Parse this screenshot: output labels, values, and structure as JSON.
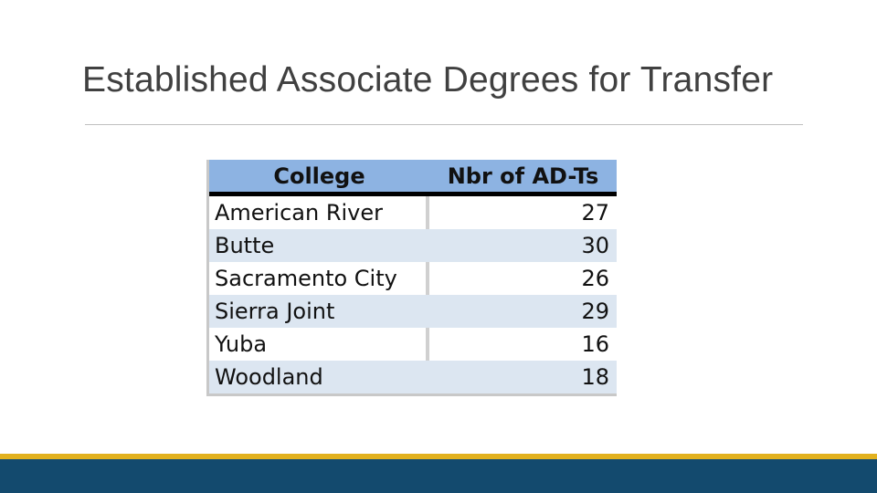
{
  "header": {
    "title": "Established Associate Degrees for Transfer"
  },
  "table": {
    "columns": [
      "College",
      "Nbr of AD-Ts"
    ],
    "rows": [
      [
        "American River",
        27
      ],
      [
        "Butte",
        30
      ],
      [
        "Sacramento City",
        26
      ],
      [
        "Sierra Joint",
        29
      ],
      [
        "Yuba",
        16
      ],
      [
        "Woodland",
        18
      ]
    ]
  }
}
